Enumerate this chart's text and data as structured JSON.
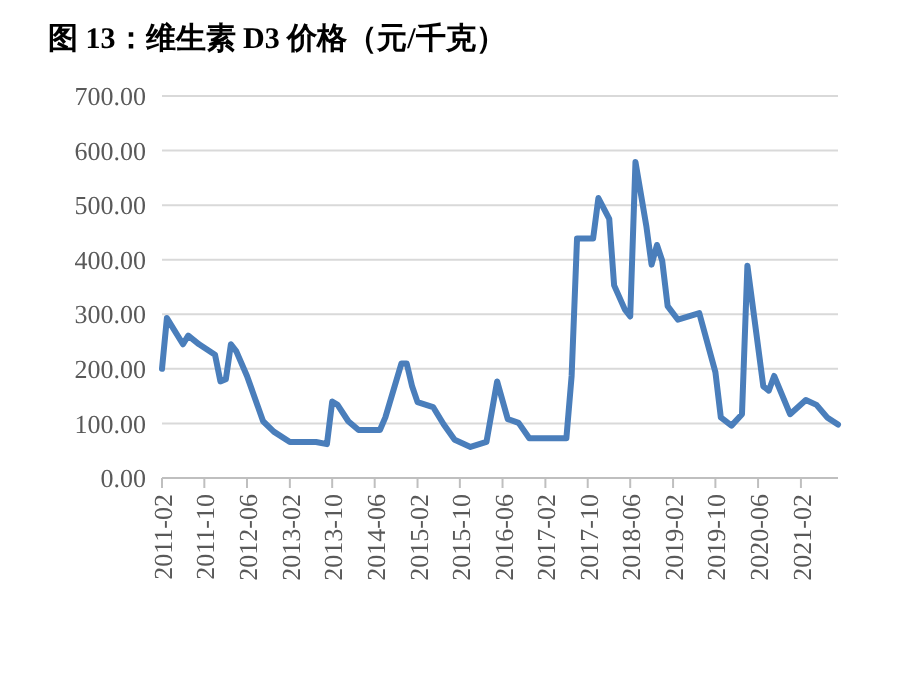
{
  "chart_data": {
    "type": "line",
    "title": "图 13：维生素 D3 价格（元/千克）",
    "x": [
      "2011-02",
      "2011-03",
      "2011-06",
      "2011-07",
      "2011-09",
      "2011-12",
      "2012-01",
      "2012-02",
      "2012-03",
      "2012-04",
      "2012-06",
      "2012-09",
      "2012-11",
      "2013-02",
      "2013-07",
      "2013-09",
      "2013-10",
      "2013-11",
      "2014-01",
      "2014-03",
      "2014-07",
      "2014-08",
      "2014-11",
      "2014-12",
      "2015-01",
      "2015-02",
      "2015-05",
      "2015-07",
      "2015-09",
      "2015-12",
      "2016-03",
      "2016-05",
      "2016-07",
      "2016-09",
      "2016-11",
      "2017-06",
      "2017-07",
      "2017-08",
      "2017-11",
      "2017-12",
      "2018-02",
      "2018-03",
      "2018-05",
      "2018-06",
      "2018-07",
      "2018-09",
      "2018-10",
      "2018-11",
      "2018-12",
      "2019-01",
      "2019-03",
      "2019-07",
      "2019-10",
      "2019-11",
      "2020-01",
      "2020-03",
      "2020-04",
      "2020-07",
      "2020-08",
      "2020-09",
      "2020-12",
      "2021-03",
      "2021-05",
      "2021-07",
      "2021-09"
    ],
    "series": [
      {
        "color": "#4a7ebb",
        "values": [
          200,
          293,
          245,
          261,
          245,
          226,
          177,
          181,
          245,
          232,
          187,
          104,
          85,
          66,
          66,
          62,
          140,
          134,
          104,
          88,
          88,
          111,
          210,
          210,
          168,
          139,
          130,
          98,
          70,
          57,
          66,
          177,
          108,
          101,
          73,
          73,
          187,
          439,
          439,
          513,
          475,
          353,
          309,
          296,
          579,
          462,
          391,
          427,
          398,
          315,
          290,
          302,
          194,
          111,
          96,
          117,
          389,
          168,
          160,
          187,
          117,
          143,
          134,
          111,
          98
        ]
      }
    ],
    "xlim": [
      "2011-02",
      "2021-09"
    ],
    "xticks": [
      "2011-02",
      "2011-10",
      "2012-06",
      "2013-02",
      "2013-10",
      "2014-06",
      "2015-02",
      "2015-10",
      "2016-06",
      "2017-02",
      "2017-10",
      "2018-06",
      "2019-02",
      "2019-10",
      "2020-06",
      "2021-02"
    ],
    "ylim": [
      0,
      700
    ],
    "yticks": [
      {
        "value": 0,
        "label": "0.00"
      },
      {
        "value": 100,
        "label": "100.00"
      },
      {
        "value": 200,
        "label": "200.00"
      },
      {
        "value": 300,
        "label": "300.00"
      },
      {
        "value": 400,
        "label": "400.00"
      },
      {
        "value": 500,
        "label": "500.00"
      },
      {
        "value": 600,
        "label": "600.00"
      },
      {
        "value": 700,
        "label": "700.00"
      }
    ],
    "grid": "y",
    "marker": "none",
    "line_style": "solid"
  }
}
